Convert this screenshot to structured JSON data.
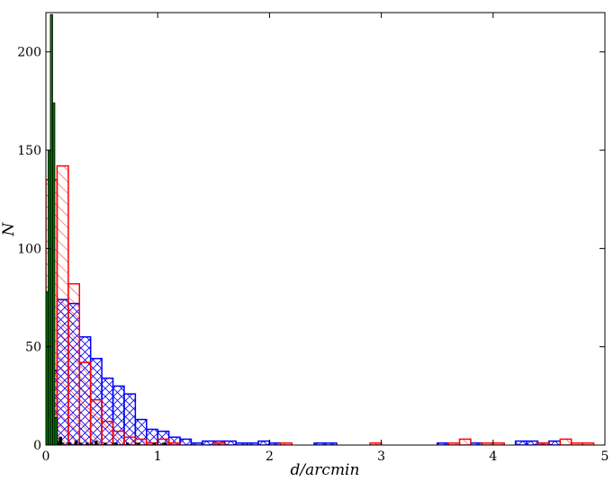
{
  "chart_data": {
    "type": "bar",
    "xlabel": "d/arcmin",
    "ylabel": "N",
    "xlim": [
      0,
      5
    ],
    "ylim": [
      0,
      220
    ],
    "x_ticks": [
      "0",
      "1",
      "2",
      "3",
      "4",
      "5"
    ],
    "y_ticks": [
      "0",
      "50",
      "100",
      "150",
      "200"
    ],
    "grid": false,
    "legend": "none",
    "series": [
      {
        "style": "blue hatched outline",
        "color": "#0000ff",
        "bin_width": 0.1,
        "bins": [
          {
            "x0": 0.0,
            "value": 38
          },
          {
            "x0": 0.1,
            "value": 74
          },
          {
            "x0": 0.2,
            "value": 72
          },
          {
            "x0": 0.3,
            "value": 55
          },
          {
            "x0": 0.4,
            "value": 44
          },
          {
            "x0": 0.5,
            "value": 34
          },
          {
            "x0": 0.6,
            "value": 30
          },
          {
            "x0": 0.7,
            "value": 26
          },
          {
            "x0": 0.8,
            "value": 13
          },
          {
            "x0": 0.9,
            "value": 8
          },
          {
            "x0": 1.0,
            "value": 7
          },
          {
            "x0": 1.1,
            "value": 4
          },
          {
            "x0": 1.2,
            "value": 3
          },
          {
            "x0": 1.3,
            "value": 1
          },
          {
            "x0": 1.4,
            "value": 2
          },
          {
            "x0": 1.5,
            "value": 2
          },
          {
            "x0": 1.6,
            "value": 2
          },
          {
            "x0": 1.7,
            "value": 1
          },
          {
            "x0": 1.8,
            "value": 1
          },
          {
            "x0": 1.9,
            "value": 2
          },
          {
            "x0": 2.0,
            "value": 1
          },
          {
            "x0": 2.4,
            "value": 1
          },
          {
            "x0": 2.5,
            "value": 1
          },
          {
            "x0": 3.5,
            "value": 1
          },
          {
            "x0": 3.8,
            "value": 1
          },
          {
            "x0": 4.2,
            "value": 2
          },
          {
            "x0": 4.3,
            "value": 2
          },
          {
            "x0": 4.4,
            "value": 1
          },
          {
            "x0": 4.5,
            "value": 2
          }
        ]
      },
      {
        "style": "red hatched outline",
        "color": "#ff0000",
        "bin_width": 0.1,
        "bins": [
          {
            "x0": 0.0,
            "value": 135
          },
          {
            "x0": 0.1,
            "value": 142
          },
          {
            "x0": 0.2,
            "value": 82
          },
          {
            "x0": 0.3,
            "value": 42
          },
          {
            "x0": 0.4,
            "value": 23
          },
          {
            "x0": 0.5,
            "value": 12
          },
          {
            "x0": 0.6,
            "value": 7
          },
          {
            "x0": 0.7,
            "value": 4
          },
          {
            "x0": 0.8,
            "value": 3
          },
          {
            "x0": 0.9,
            "value": 1
          },
          {
            "x0": 1.0,
            "value": 3
          },
          {
            "x0": 1.1,
            "value": 1
          },
          {
            "x0": 1.5,
            "value": 1
          },
          {
            "x0": 2.1,
            "value": 1
          },
          {
            "x0": 2.9,
            "value": 1
          },
          {
            "x0": 3.6,
            "value": 1
          },
          {
            "x0": 3.7,
            "value": 3
          },
          {
            "x0": 3.9,
            "value": 1
          },
          {
            "x0": 4.0,
            "value": 1
          },
          {
            "x0": 4.4,
            "value": 1
          },
          {
            "x0": 4.6,
            "value": 3
          },
          {
            "x0": 4.7,
            "value": 1
          },
          {
            "x0": 4.8,
            "value": 1
          }
        ]
      },
      {
        "style": "green filled",
        "color": "#007a00",
        "bin_width": 0.02,
        "bins": [
          {
            "x0": 0.0,
            "value": 78
          },
          {
            "x0": 0.02,
            "value": 150
          },
          {
            "x0": 0.04,
            "value": 219
          },
          {
            "x0": 0.06,
            "value": 174
          },
          {
            "x0": 0.08,
            "value": 14
          },
          {
            "x0": 0.1,
            "value": 2
          },
          {
            "x0": 0.12,
            "value": 4
          },
          {
            "x0": 0.14,
            "value": 1
          },
          {
            "x0": 0.2,
            "value": 1
          },
          {
            "x0": 0.26,
            "value": 2
          },
          {
            "x0": 0.3,
            "value": 1
          },
          {
            "x0": 0.4,
            "value": 1
          },
          {
            "x0": 0.44,
            "value": 2
          },
          {
            "x0": 0.52,
            "value": 1
          },
          {
            "x0": 0.6,
            "value": 1
          },
          {
            "x0": 0.72,
            "value": 1
          },
          {
            "x0": 0.8,
            "value": 1
          },
          {
            "x0": 1.04,
            "value": 1
          }
        ]
      },
      {
        "style": "black filled",
        "color": "#000000",
        "bin_width": 0.02,
        "bins": [
          {
            "x0": 0.1,
            "value": 1
          },
          {
            "x0": 0.12,
            "value": 4
          },
          {
            "x0": 0.2,
            "value": 1
          },
          {
            "x0": 0.26,
            "value": 2
          },
          {
            "x0": 0.3,
            "value": 1
          },
          {
            "x0": 0.36,
            "value": 1
          },
          {
            "x0": 0.44,
            "value": 2
          },
          {
            "x0": 0.52,
            "value": 1
          },
          {
            "x0": 0.62,
            "value": 1
          },
          {
            "x0": 0.72,
            "value": 1
          },
          {
            "x0": 0.82,
            "value": 1
          },
          {
            "x0": 0.96,
            "value": 1
          },
          {
            "x0": 1.06,
            "value": 1
          }
        ]
      }
    ]
  }
}
